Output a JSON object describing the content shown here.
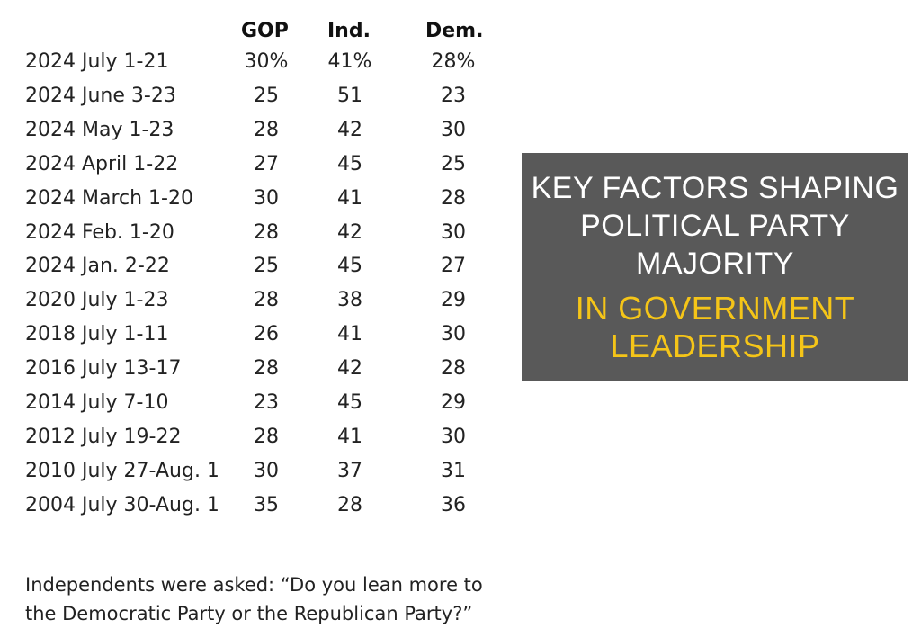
{
  "table": {
    "headers": {
      "gop": "GOP",
      "ind": "Ind.",
      "dem": "Dem."
    },
    "rows": [
      {
        "label": "2024 July 1-21",
        "gop": "30%",
        "ind": "41%",
        "dem": "28%"
      },
      {
        "label": "2024 June 3-23",
        "gop": "25",
        "ind": "51",
        "dem": "23"
      },
      {
        "label": "2024 May 1-23",
        "gop": "28",
        "ind": "42",
        "dem": "30"
      },
      {
        "label": "2024 April 1-22",
        "gop": "27",
        "ind": "45",
        "dem": "25"
      },
      {
        "label": "2024 March 1-20",
        "gop": "30",
        "ind": "41",
        "dem": "28"
      },
      {
        "label": "2024 Feb. 1-20",
        "gop": "28",
        "ind": "42",
        "dem": "30"
      },
      {
        "label": "2024 Jan. 2-22",
        "gop": "25",
        "ind": "45",
        "dem": "27"
      },
      {
        "label": "2020 July 1-23",
        "gop": "28",
        "ind": "38",
        "dem": "29"
      },
      {
        "label": "2018 July 1-11",
        "gop": "26",
        "ind": "41",
        "dem": "30"
      },
      {
        "label": "2016 July 13-17",
        "gop": "28",
        "ind": "42",
        "dem": "28"
      },
      {
        "label": "2014 July 7-10",
        "gop": "23",
        "ind": "45",
        "dem": "29"
      },
      {
        "label": "2012 July 19-22",
        "gop": "28",
        "ind": "41",
        "dem": "30"
      },
      {
        "label": "2010 July 27-Aug. 1",
        "gop": "30",
        "ind": "37",
        "dem": "31"
      },
      {
        "label": "2004 July 30-Aug. 1",
        "gop": "35",
        "ind": "28",
        "dem": "36"
      }
    ]
  },
  "note": "Independents were asked: “Do you lean more to the Democratic Party or the Republican Party?”",
  "banner": {
    "line1": "KEY FACTORS SHAPING POLITICAL PARTY MAJORITY",
    "line2": "IN GOVERNMENT LEADERSHIP"
  }
}
